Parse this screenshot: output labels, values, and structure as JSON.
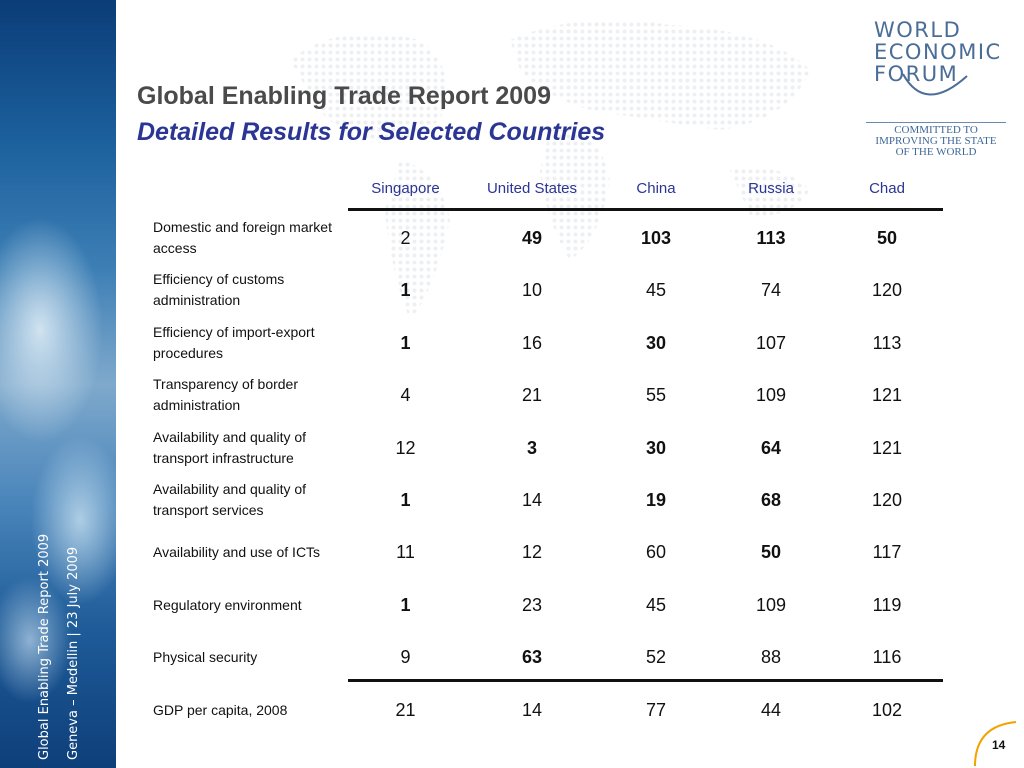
{
  "title": "Global Enabling Trade Report 2009",
  "subtitle": "Detailed Results for Selected Countries",
  "side_text": {
    "line1": "Global Enabling Trade Report 2009",
    "line2": "Geneva – Medellin | 23 July 2009"
  },
  "logo": {
    "line1": "WORLD",
    "line2": "ECONOMIC",
    "line3": "FORUM",
    "tagline1": "COMMITTED TO",
    "tagline2": "IMPROVING THE STATE",
    "tagline3": "OF THE WORLD"
  },
  "table": {
    "columns": [
      "Singapore",
      "United States",
      "China",
      "Russia",
      "Chad"
    ],
    "rows": [
      {
        "label": "Domestic and foreign market access",
        "values": [
          "2",
          "49",
          "103",
          "113",
          "50"
        ],
        "bold": [
          false,
          true,
          true,
          true,
          true
        ]
      },
      {
        "label": "Efficiency of customs administration",
        "values": [
          "1",
          "10",
          "45",
          "74",
          "120"
        ],
        "bold": [
          true,
          false,
          false,
          false,
          false
        ]
      },
      {
        "label": "Efficiency of import-export procedures",
        "values": [
          "1",
          "16",
          "30",
          "107",
          "113"
        ],
        "bold": [
          true,
          false,
          true,
          false,
          false
        ]
      },
      {
        "label": "Transparency of border administration",
        "values": [
          "4",
          "21",
          "55",
          "109",
          "121"
        ],
        "bold": [
          false,
          false,
          false,
          false,
          false
        ]
      },
      {
        "label": "Availability and quality of transport infrastructure",
        "values": [
          "12",
          "3",
          "30",
          "64",
          "121"
        ],
        "bold": [
          false,
          true,
          true,
          true,
          false
        ]
      },
      {
        "label": "Availability and quality of transport services",
        "values": [
          "1",
          "14",
          "19",
          "68",
          "120"
        ],
        "bold": [
          true,
          false,
          true,
          true,
          false
        ]
      },
      {
        "label": "Availability and use of ICTs",
        "values": [
          "11",
          "12",
          "60",
          "50",
          "117"
        ],
        "bold": [
          false,
          false,
          false,
          true,
          false
        ]
      },
      {
        "label": "Regulatory environment",
        "values": [
          "1",
          "23",
          "45",
          "109",
          "119"
        ],
        "bold": [
          true,
          false,
          false,
          false,
          false
        ]
      },
      {
        "label": "Physical security",
        "values": [
          "9",
          "63",
          "52",
          "88",
          "116"
        ],
        "bold": [
          false,
          true,
          false,
          false,
          false
        ]
      },
      {
        "label": "GDP per capita, 2008",
        "values": [
          "21",
          "14",
          "77",
          "44",
          "102"
        ],
        "bold": [
          false,
          false,
          false,
          false,
          false
        ]
      }
    ]
  },
  "page_number": "14",
  "colors": {
    "title_gray": "#4a4a4a",
    "title_blue": "#2b3594",
    "header_blue": "#2b3594",
    "logo_blue": "#4a6d98"
  }
}
